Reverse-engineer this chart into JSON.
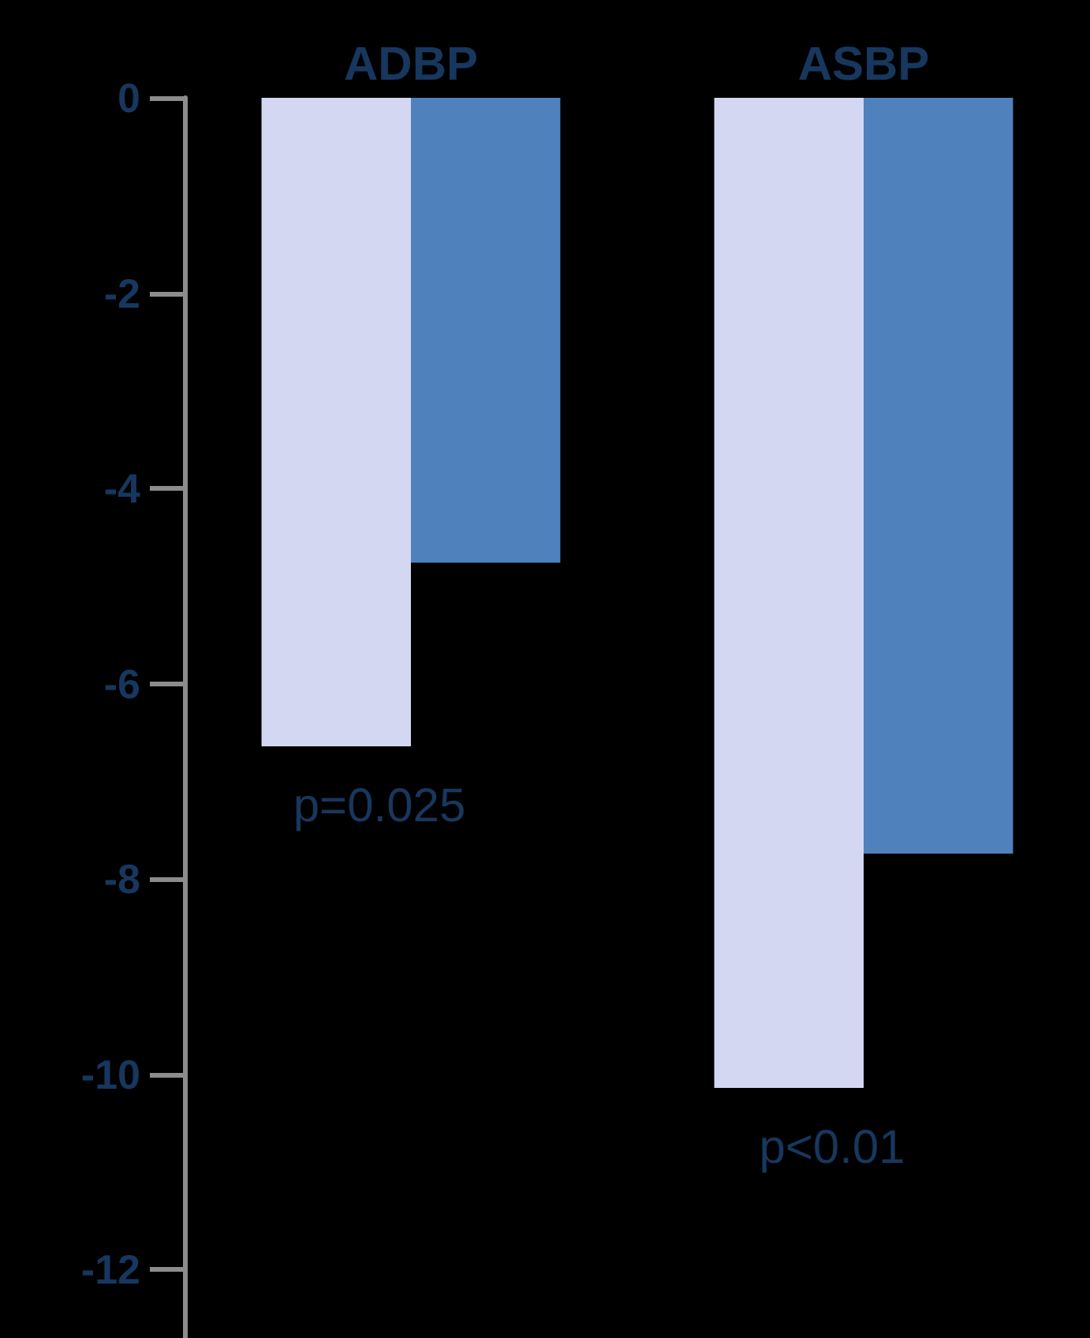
{
  "chart_data": {
    "type": "bar",
    "categories": [
      "ADBP",
      "ASBP"
    ],
    "series": [
      {
        "color": "#d4d7f2",
        "values": [
          -6.64,
          -10.14
        ]
      },
      {
        "color": "#4f81bd",
        "values": [
          -4.76,
          -7.74
        ]
      }
    ],
    "ylim": [
      -12.7,
      0
    ],
    "yticks": [
      0,
      -2,
      -4,
      -6,
      -8,
      -10,
      -12
    ],
    "grid": false,
    "annotations": [
      "p=0.025",
      "p<0.01"
    ]
  }
}
